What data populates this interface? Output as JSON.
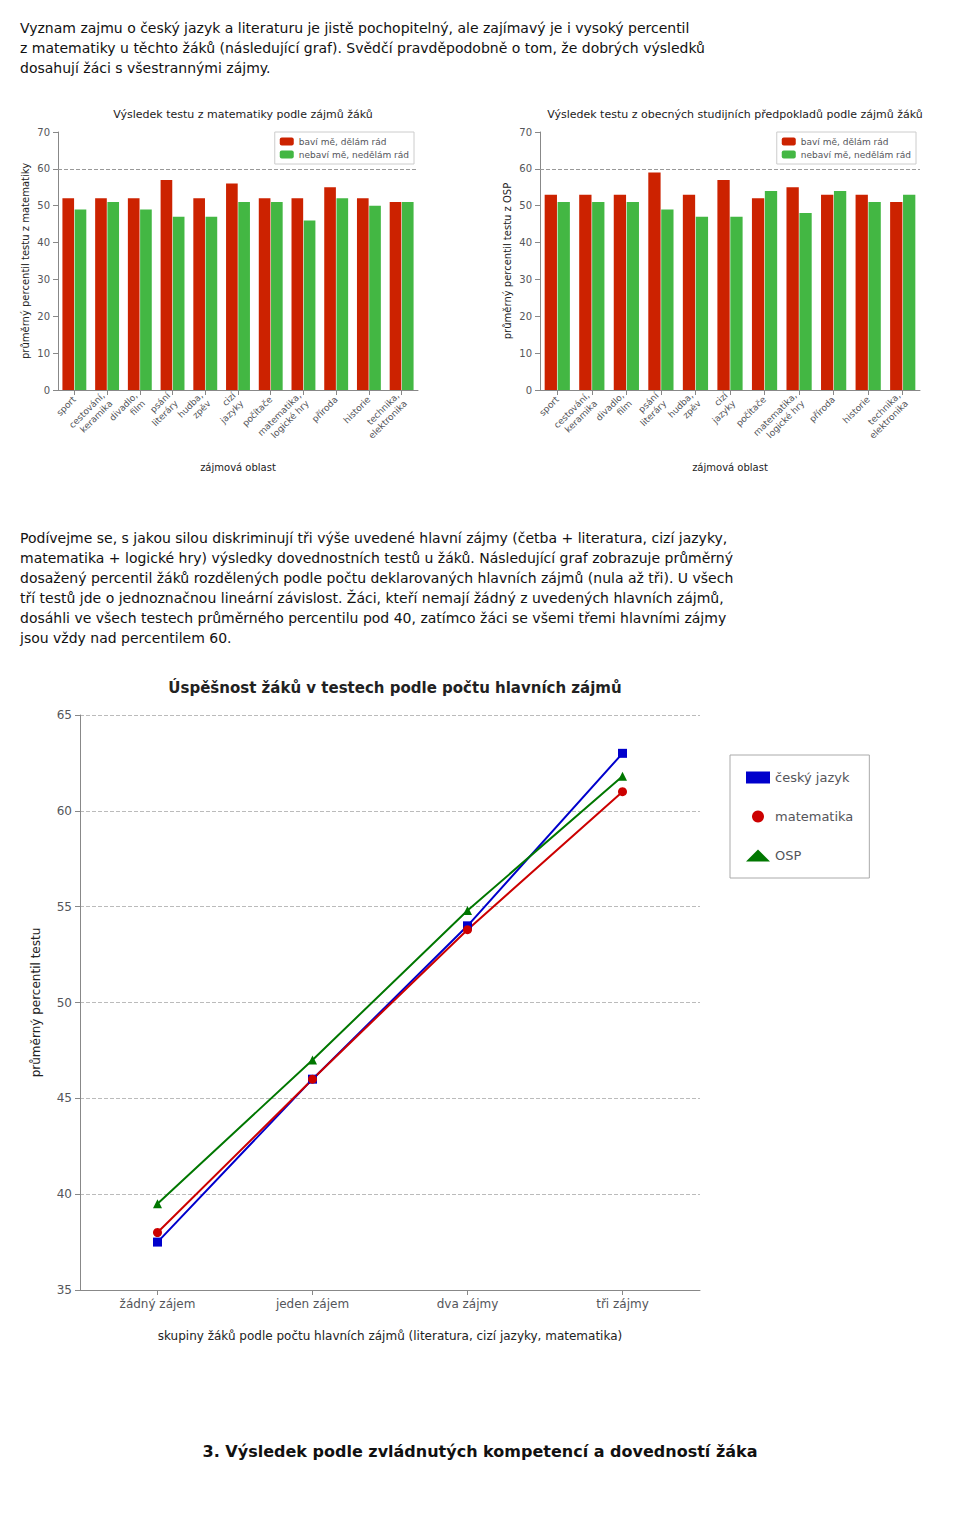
{
  "chart_data": [
    {
      "type": "bar",
      "title": "Výsledek testu z matematiky podle zájmů žáků",
      "xlabel": "zájmová oblast",
      "ylabel": "průměrný percentil testu z matematiky",
      "categories": [
        "sport",
        "cestování,\nkeramika",
        "divadlo,\nfilm",
        "psání\nliteráry",
        "hudba,\nzpěv",
        "cizí\njazyky",
        "počítače",
        "matematika,\nlogické hry",
        "příroda",
        "historie",
        "technika,\nelektronika"
      ],
      "series": [
        {
          "name": "baví mě, dělám rád",
          "color": "#cc2200",
          "values": [
            52,
            52,
            52,
            57,
            52,
            56,
            52,
            52,
            55,
            52,
            51
          ]
        },
        {
          "name": "nebaví mě, nedělám rád",
          "color": "#22aa22",
          "values": [
            49,
            51,
            49,
            47,
            47,
            51,
            51,
            46,
            52,
            50,
            51
          ]
        }
      ],
      "ylim": [
        0,
        70
      ],
      "yticks": [
        0,
        10,
        20,
        30,
        40,
        50,
        60,
        70
      ],
      "hline": 60,
      "grid": false,
      "legend": "upper right"
    },
    {
      "type": "bar",
      "title": "Výsledek testu z obecných studijních předpokladů podle zájmů žáků",
      "xlabel": "zájmová oblast",
      "ylabel": "průměrný percentil testu z OSP",
      "categories": [
        "sport",
        "cestování,\nkeramika",
        "divadlo,\nfilm",
        "psání\nliteráry",
        "hudba,\nzpěv",
        "cizí\njazyky",
        "počítače",
        "matematika,\nlogické hry",
        "příroda",
        "historie",
        "technika,\nelektronika"
      ],
      "series": [
        {
          "name": "baví mě, dělám rád",
          "color": "#cc2200",
          "values": [
            53,
            53,
            53,
            59,
            53,
            57,
            52,
            55,
            53,
            53,
            51
          ]
        },
        {
          "name": "nebaví mě, nedělám rád",
          "color": "#22aa22",
          "values": [
            51,
            51,
            51,
            49,
            47,
            47,
            54,
            48,
            54,
            51,
            53
          ]
        }
      ],
      "ylim": [
        0,
        70
      ],
      "yticks": [
        0,
        10,
        20,
        30,
        40,
        50,
        60,
        70
      ],
      "hline": 60,
      "grid": false,
      "legend": "upper right"
    },
    {
      "type": "line",
      "title": "Úspěšnost žáků v testech podle počtu hlavních zájmů",
      "xlabel": "skupiny žáků podle počtu hlavních zájmů (literatura, cizí jazyky, matematika)",
      "ylabel": "průměrný percentil testu",
      "categories": [
        "žádný zájem",
        "jeden zájem",
        "dva zájmy",
        "tři zájmy"
      ],
      "series": [
        {
          "name": "český jazyk",
          "color": "#0000cc",
          "marker": "square",
          "values": [
            37.5,
            46.0,
            54.0,
            63.0
          ]
        },
        {
          "name": "matematika",
          "color": "#cc0000",
          "marker": "circle",
          "values": [
            38.0,
            46.0,
            53.8,
            61.0
          ]
        },
        {
          "name": "OSP",
          "color": "#007700",
          "marker": "triangle",
          "values": [
            39.5,
            47.0,
            54.8,
            61.8
          ]
        }
      ],
      "ylim": [
        35,
        65
      ],
      "yticks": [
        35,
        40,
        45,
        50,
        55,
        60,
        65
      ],
      "grid": true,
      "legend": "right"
    }
  ],
  "annotations": [
    "Vyznam zajmu o český jazyk a literaturu je jistě pochopitelný, ale zajímavý je i vysoký percentil\nz matematiky u těchto žáků (následující graf). Svědčí pravděpodobně o tom, že dobrých výsledků\ndosahují žáci s všestrannými zájmy.",
    "Podívejme se, s jakou silou diskriminují tři výše uvedené hlavní zájmy (četba + literatura, cizí jazyky,\nmatematika + logické hry) výsledky dovednostních testů u žáků. Následující graf zobrazuje průměrný\ndosažený percentil žáků rozdělených podle počtu deklarovaných hlavních zájmů (nula až tři). U všech\ntří testů jde o jednoznačnou lineární závislost. Žáci, kteří nemají žádný z uvedených hlavních zájmů,\ndosáhli ve všech testech průměrného percentilu pod 40, zatímco žáci se všemi třemi hlavními zájmy\njsou vždy nad percentilem 60.",
    "3. Výsledek podle zvládnutých kompetencí a dovedností žáka"
  ]
}
